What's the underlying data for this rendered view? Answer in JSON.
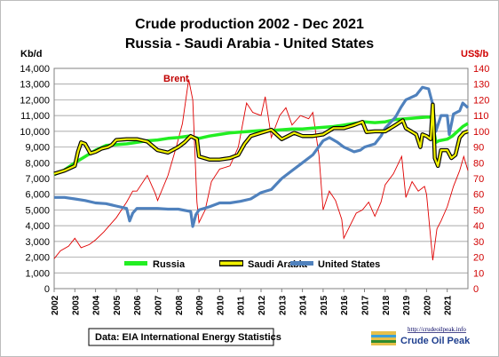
{
  "chart_data": {
    "type": "line",
    "title_line1": "Crude production 2002 - Dec 2021",
    "title_line2": "Russia - Saudi Arabia - United States",
    "y_left_unit": "Kb/d",
    "y_right_unit": "US$/b",
    "y_left_range": [
      0,
      14000
    ],
    "y_right_range": [
      0,
      140
    ],
    "y_left_ticks": [
      "0",
      "1,000",
      "2,000",
      "3,000",
      "4,000",
      "5,000",
      "6,000",
      "7,000",
      "8,000",
      "9,000",
      "10,000",
      "11,000",
      "12,000",
      "13,000",
      "14,000"
    ],
    "y_right_ticks": [
      "0",
      "10",
      "20",
      "30",
      "40",
      "50",
      "60",
      "70",
      "80",
      "90",
      "100",
      "110",
      "120",
      "130",
      "140"
    ],
    "x_range": [
      2002,
      2022
    ],
    "x_ticks": [
      "2002",
      "2003",
      "2004",
      "2005",
      "2006",
      "2007",
      "2008",
      "2009",
      "2010",
      "2011",
      "2012",
      "2013",
      "2014",
      "2015",
      "2016",
      "2017",
      "2018",
      "2019",
      "2020",
      "2021"
    ],
    "grid": true,
    "legend_position": "bottom",
    "annotation": "Brent",
    "source": "Data:  EIA International Energy Statistics",
    "series": [
      {
        "name": "Russia",
        "axis": "left",
        "color": "#22ee22",
        "points": [
          [
            2002.0,
            7250
          ],
          [
            2002.5,
            7550
          ],
          [
            2003.0,
            8000
          ],
          [
            2003.5,
            8400
          ],
          [
            2004.0,
            8800
          ],
          [
            2004.5,
            9100
          ],
          [
            2005.0,
            9150
          ],
          [
            2005.5,
            9200
          ],
          [
            2006.0,
            9300
          ],
          [
            2006.5,
            9400
          ],
          [
            2007.0,
            9450
          ],
          [
            2007.5,
            9550
          ],
          [
            2008.0,
            9600
          ],
          [
            2008.5,
            9700
          ],
          [
            2009.0,
            9550
          ],
          [
            2009.5,
            9700
          ],
          [
            2010.0,
            9800
          ],
          [
            2010.5,
            9900
          ],
          [
            2011.0,
            9950
          ],
          [
            2011.5,
            10000
          ],
          [
            2012.0,
            10050
          ],
          [
            2012.5,
            10050
          ],
          [
            2013.0,
            10100
          ],
          [
            2013.5,
            10150
          ],
          [
            2014.0,
            10150
          ],
          [
            2014.5,
            10200
          ],
          [
            2015.0,
            10250
          ],
          [
            2015.5,
            10300
          ],
          [
            2016.0,
            10400
          ],
          [
            2016.5,
            10500
          ],
          [
            2017.0,
            10600
          ],
          [
            2017.5,
            10550
          ],
          [
            2018.0,
            10600
          ],
          [
            2018.5,
            10750
          ],
          [
            2019.0,
            10800
          ],
          [
            2019.5,
            10850
          ],
          [
            2020.0,
            10900
          ],
          [
            2020.25,
            10900
          ],
          [
            2020.45,
            9300
          ],
          [
            2020.6,
            9400
          ],
          [
            2021.0,
            9500
          ],
          [
            2021.25,
            9700
          ],
          [
            2021.5,
            10000
          ],
          [
            2021.75,
            10300
          ],
          [
            2022.0,
            10500
          ]
        ]
      },
      {
        "name": "Saudi Arabia",
        "axis": "left",
        "color": "#f2f200",
        "points": [
          [
            2002.0,
            7300
          ],
          [
            2002.5,
            7500
          ],
          [
            2003.0,
            7800
          ],
          [
            2003.15,
            8700
          ],
          [
            2003.3,
            9300
          ],
          [
            2003.5,
            9200
          ],
          [
            2003.75,
            8600
          ],
          [
            2004.0,
            8700
          ],
          [
            2004.3,
            8900
          ],
          [
            2004.6,
            9000
          ],
          [
            2004.8,
            9150
          ],
          [
            2005.0,
            9450
          ],
          [
            2005.5,
            9500
          ],
          [
            2006.0,
            9500
          ],
          [
            2006.5,
            9350
          ],
          [
            2007.0,
            8800
          ],
          [
            2007.5,
            8650
          ],
          [
            2008.0,
            9000
          ],
          [
            2008.3,
            9300
          ],
          [
            2008.6,
            9700
          ],
          [
            2008.9,
            9500
          ],
          [
            2009.0,
            8400
          ],
          [
            2009.5,
            8200
          ],
          [
            2010.0,
            8200
          ],
          [
            2010.5,
            8300
          ],
          [
            2010.9,
            8500
          ],
          [
            2011.2,
            9200
          ],
          [
            2011.5,
            9700
          ],
          [
            2012.0,
            9900
          ],
          [
            2012.5,
            10100
          ],
          [
            2013.0,
            9500
          ],
          [
            2013.3,
            9700
          ],
          [
            2013.6,
            9900
          ],
          [
            2014.0,
            9700
          ],
          [
            2014.5,
            9700
          ],
          [
            2015.0,
            9800
          ],
          [
            2015.5,
            10200
          ],
          [
            2016.0,
            10200
          ],
          [
            2016.5,
            10400
          ],
          [
            2016.9,
            10600
          ],
          [
            2017.1,
            9950
          ],
          [
            2017.5,
            10000
          ],
          [
            2018.0,
            10000
          ],
          [
            2018.5,
            10400
          ],
          [
            2018.85,
            10700
          ],
          [
            2019.0,
            10200
          ],
          [
            2019.5,
            9800
          ],
          [
            2019.7,
            9000
          ],
          [
            2019.8,
            9800
          ],
          [
            2020.0,
            9700
          ],
          [
            2020.2,
            9500
          ],
          [
            2020.3,
            11700
          ],
          [
            2020.4,
            8300
          ],
          [
            2020.55,
            7800
          ],
          [
            2020.7,
            8800
          ],
          [
            2021.0,
            8800
          ],
          [
            2021.2,
            8300
          ],
          [
            2021.4,
            8500
          ],
          [
            2021.6,
            9600
          ],
          [
            2021.8,
            9900
          ],
          [
            2022.0,
            10000
          ]
        ]
      },
      {
        "name": "United States",
        "axis": "left",
        "color": "#4f81bd",
        "points": [
          [
            2002.0,
            5800
          ],
          [
            2002.5,
            5800
          ],
          [
            2003.0,
            5700
          ],
          [
            2003.5,
            5600
          ],
          [
            2004.0,
            5450
          ],
          [
            2004.5,
            5400
          ],
          [
            2005.0,
            5250
          ],
          [
            2005.5,
            5100
          ],
          [
            2005.65,
            4300
          ],
          [
            2005.8,
            4800
          ],
          [
            2006.0,
            5100
          ],
          [
            2006.5,
            5100
          ],
          [
            2007.0,
            5100
          ],
          [
            2007.5,
            5050
          ],
          [
            2008.0,
            5050
          ],
          [
            2008.6,
            4900
          ],
          [
            2008.7,
            3950
          ],
          [
            2008.85,
            4700
          ],
          [
            2009.0,
            5000
          ],
          [
            2009.5,
            5200
          ],
          [
            2010.0,
            5450
          ],
          [
            2010.5,
            5450
          ],
          [
            2011.0,
            5550
          ],
          [
            2011.5,
            5700
          ],
          [
            2012.0,
            6100
          ],
          [
            2012.5,
            6300
          ],
          [
            2013.0,
            7000
          ],
          [
            2013.5,
            7500
          ],
          [
            2014.0,
            8000
          ],
          [
            2014.5,
            8500
          ],
          [
            2015.0,
            9400
          ],
          [
            2015.3,
            9600
          ],
          [
            2015.7,
            9300
          ],
          [
            2016.0,
            9000
          ],
          [
            2016.5,
            8700
          ],
          [
            2016.8,
            8800
          ],
          [
            2017.0,
            9000
          ],
          [
            2017.5,
            9200
          ],
          [
            2017.8,
            9700
          ],
          [
            2018.0,
            10200
          ],
          [
            2018.5,
            10900
          ],
          [
            2018.75,
            11500
          ],
          [
            2019.0,
            12000
          ],
          [
            2019.5,
            12300
          ],
          [
            2019.8,
            12800
          ],
          [
            2020.1,
            12700
          ],
          [
            2020.3,
            11700
          ],
          [
            2020.45,
            10000
          ],
          [
            2020.7,
            11000
          ],
          [
            2021.0,
            11000
          ],
          [
            2021.1,
            9800
          ],
          [
            2021.3,
            11100
          ],
          [
            2021.6,
            11300
          ],
          [
            2021.75,
            11800
          ],
          [
            2022.0,
            11500
          ]
        ]
      },
      {
        "name": "Brent",
        "axis": "right",
        "color": "#e00000",
        "points": [
          [
            2002.0,
            19
          ],
          [
            2002.3,
            24
          ],
          [
            2002.7,
            27
          ],
          [
            2003.0,
            32
          ],
          [
            2003.3,
            26
          ],
          [
            2003.7,
            28
          ],
          [
            2004.0,
            31
          ],
          [
            2004.4,
            36
          ],
          [
            2004.8,
            42
          ],
          [
            2005.0,
            45
          ],
          [
            2005.5,
            55
          ],
          [
            2005.8,
            62
          ],
          [
            2006.0,
            62
          ],
          [
            2006.5,
            72
          ],
          [
            2006.9,
            60
          ],
          [
            2007.0,
            56
          ],
          [
            2007.5,
            72
          ],
          [
            2007.9,
            90
          ],
          [
            2008.2,
            105
          ],
          [
            2008.5,
            133
          ],
          [
            2008.7,
            120
          ],
          [
            2008.9,
            55
          ],
          [
            2009.0,
            42
          ],
          [
            2009.3,
            50
          ],
          [
            2009.6,
            68
          ],
          [
            2010.0,
            76
          ],
          [
            2010.5,
            78
          ],
          [
            2010.9,
            90
          ],
          [
            2011.3,
            118
          ],
          [
            2011.6,
            112
          ],
          [
            2012.0,
            110
          ],
          [
            2012.2,
            122
          ],
          [
            2012.5,
            96
          ],
          [
            2012.9,
            110
          ],
          [
            2013.2,
            115
          ],
          [
            2013.5,
            104
          ],
          [
            2013.9,
            110
          ],
          [
            2014.3,
            108
          ],
          [
            2014.5,
            112
          ],
          [
            2014.8,
            85
          ],
          [
            2015.0,
            50
          ],
          [
            2015.3,
            62
          ],
          [
            2015.6,
            56
          ],
          [
            2015.9,
            44
          ],
          [
            2016.0,
            32
          ],
          [
            2016.3,
            40
          ],
          [
            2016.6,
            48
          ],
          [
            2016.9,
            50
          ],
          [
            2017.2,
            55
          ],
          [
            2017.5,
            46
          ],
          [
            2017.8,
            55
          ],
          [
            2018.0,
            66
          ],
          [
            2018.4,
            73
          ],
          [
            2018.8,
            84
          ],
          [
            2019.0,
            58
          ],
          [
            2019.3,
            68
          ],
          [
            2019.6,
            62
          ],
          [
            2019.9,
            65
          ],
          [
            2020.0,
            60
          ],
          [
            2020.2,
            32
          ],
          [
            2020.3,
            18
          ],
          [
            2020.5,
            38
          ],
          [
            2020.7,
            43
          ],
          [
            2021.0,
            52
          ],
          [
            2021.3,
            65
          ],
          [
            2021.6,
            75
          ],
          [
            2021.8,
            84
          ],
          [
            2022.0,
            75
          ]
        ]
      }
    ]
  },
  "logo": {
    "url_text": "http://crudeoilpeak.info",
    "name_text": "Crude Oil Peak"
  }
}
